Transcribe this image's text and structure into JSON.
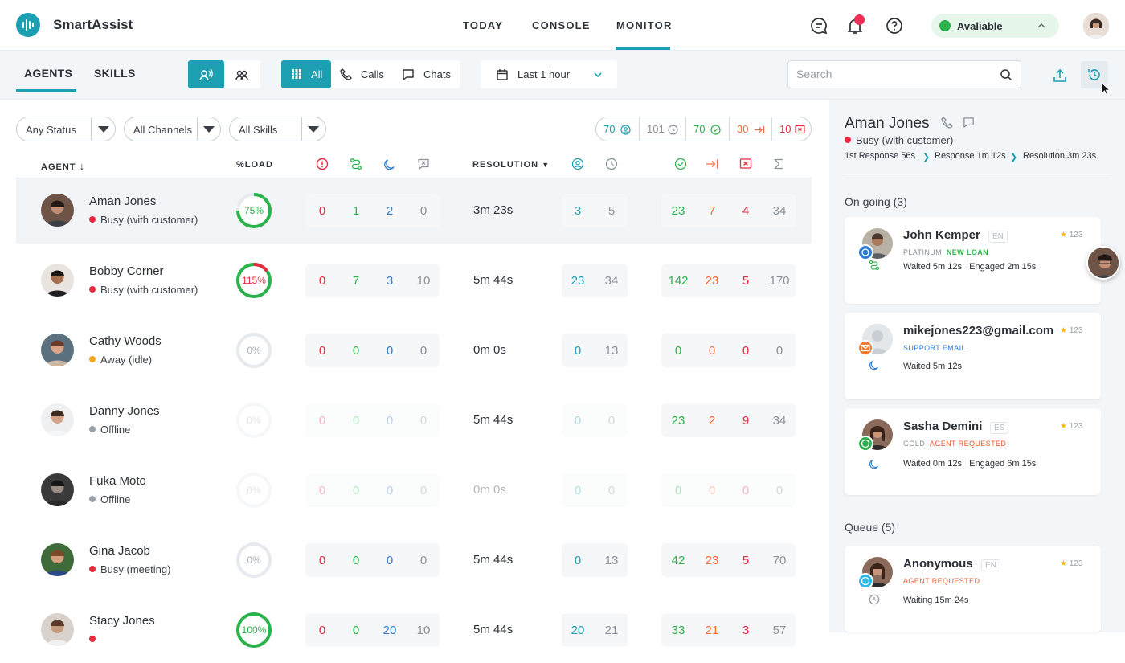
{
  "app": {
    "name": "SmartAssist"
  },
  "nav": {
    "today": "TODAY",
    "console": "CONSOLE",
    "monitor": "MONITOR"
  },
  "status": {
    "label": "Avaliable",
    "color": "#2bb24c"
  },
  "toolbar": {
    "tabs": {
      "agents": "AGENTS",
      "skills": "SKILLS"
    },
    "channels": {
      "all": "All",
      "calls": "Calls",
      "chats": "Chats"
    },
    "range": "Last 1 hour",
    "search_placeholder": "Search"
  },
  "filters": {
    "status": "Any Status",
    "channels": "All Channels",
    "skills": "All Skills"
  },
  "summary": {
    "agents": "70",
    "waiting": "101",
    "completed": "70",
    "transferred": "30",
    "abandoned": "10"
  },
  "columns": {
    "agent": "AGENT",
    "load": "%LOAD",
    "resolution": "RESOLUTION"
  },
  "agents": [
    {
      "name": "Aman Jones",
      "status": "Busy (with customer)",
      "status_color": "#e8293f",
      "load": "75%",
      "load_value": 75,
      "a": "0",
      "b": "1",
      "c": "2",
      "d": "0",
      "resolution": "3m 23s",
      "e": "3",
      "f": "5",
      "g": "23",
      "h": "7",
      "i": "4",
      "j": "34"
    },
    {
      "name": "Bobby Corner",
      "status": "Busy (with customer)",
      "status_color": "#e8293f",
      "load": "115%",
      "load_value": 115,
      "a": "0",
      "b": "7",
      "c": "3",
      "d": "10",
      "resolution": "5m 44s",
      "e": "23",
      "f": "34",
      "g": "142",
      "h": "23",
      "i": "5",
      "j": "170"
    },
    {
      "name": "Cathy Woods",
      "status": "Away (idle)",
      "status_color": "#f4a91c",
      "load": "0%",
      "load_value": 0,
      "a": "0",
      "b": "0",
      "c": "0",
      "d": "0",
      "resolution": "0m 0s",
      "e": "0",
      "f": "13",
      "g": "0",
      "h": "0",
      "i": "0",
      "j": "0"
    },
    {
      "name": "Danny Jones",
      "status": "Offline",
      "status_color": "#9aa1a9",
      "load": "0%",
      "load_value": 0,
      "a": "0",
      "b": "0",
      "c": "0",
      "d": "0",
      "resolution": "5m 44s",
      "e": "0",
      "f": "0",
      "g": "23",
      "h": "2",
      "i": "9",
      "j": "34"
    },
    {
      "name": "Fuka Moto",
      "status": "Offline",
      "status_color": "#9aa1a9",
      "load": "0%",
      "load_value": 0,
      "a": "0",
      "b": "0",
      "c": "0",
      "d": "0",
      "resolution": "0m 0s",
      "e": "0",
      "f": "0",
      "g": "0",
      "h": "0",
      "i": "0",
      "j": "0"
    },
    {
      "name": "Gina Jacob",
      "status": "Busy (meeting)",
      "status_color": "#e8293f",
      "load": "0%",
      "load_value": 0,
      "a": "0",
      "b": "0",
      "c": "0",
      "d": "0",
      "resolution": "5m 44s",
      "e": "0",
      "f": "13",
      "g": "42",
      "h": "23",
      "i": "5",
      "j": "70"
    },
    {
      "name": "Stacy Jones",
      "status": "",
      "status_color": "#e8293f",
      "load": "100%",
      "load_value": 100,
      "a": "0",
      "b": "0",
      "c": "20",
      "d": "10",
      "resolution": "5m 44s",
      "e": "20",
      "f": "21",
      "g": "33",
      "h": "21",
      "i": "3",
      "j": "57"
    }
  ],
  "side": {
    "name": "Aman Jones",
    "status": "Busy (with customer)",
    "steps": {
      "first": "1st Response 56s",
      "response": "Response 1m 12s",
      "resolution": "Resolution 3m 23s"
    },
    "ongoing_title": "On going (3)",
    "queue_title": "Queue (5)",
    "cards": [
      {
        "name": "John Kemper",
        "lang": "EN",
        "rating": "123",
        "tag1": "PLATINUM",
        "tag2": "NEW LOAN",
        "wait": "Waited 5m 12s",
        "engaged": "Engaged 2m 15s"
      },
      {
        "name": "mikejones223@gmail.com",
        "lang": "",
        "rating": "123",
        "tag1": "SUPPORT EMAIL",
        "tag2": "",
        "wait": "Waited 5m 12s",
        "engaged": ""
      },
      {
        "name": "Sasha Demini",
        "lang": "ES",
        "rating": "123",
        "tag1": "GOLD",
        "tag2": "AGENT REQUESTED",
        "wait": "Waited 0m 12s",
        "engaged": "Engaged 6m 15s"
      }
    ],
    "queue": [
      {
        "name": "Anonymous",
        "lang": "EN",
        "rating": "123",
        "tag1": "AGENT REQUESTED",
        "wait": "Waiting 15m 24s"
      }
    ]
  },
  "colors": {
    "accent": "#1b9fb1",
    "red": "#e8293f",
    "green": "#2bb24c",
    "blue": "#2f7bd1",
    "orange": "#f26b3a"
  }
}
